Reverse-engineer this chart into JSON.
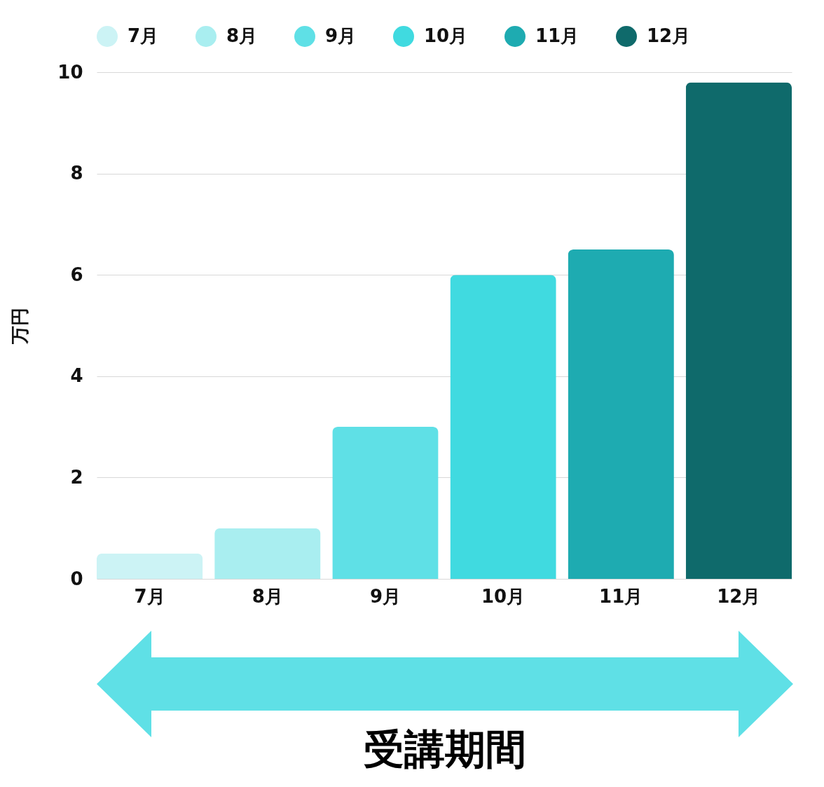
{
  "chart_data": {
    "type": "bar",
    "categories": [
      "7月",
      "8月",
      "9月",
      "10月",
      "11月",
      "12月"
    ],
    "series": [
      {
        "name": "7月",
        "color": "#ccf3f5",
        "values": [
          0.5,
          null,
          null,
          null,
          null,
          null
        ]
      },
      {
        "name": "8月",
        "color": "#a9eef0",
        "values": [
          null,
          1,
          null,
          null,
          null,
          null
        ]
      },
      {
        "name": "9月",
        "color": "#5fe0e6",
        "values": [
          null,
          null,
          3,
          null,
          null,
          null
        ]
      },
      {
        "name": "10月",
        "color": "#40dae0",
        "values": [
          null,
          null,
          null,
          6,
          null,
          null
        ]
      },
      {
        "name": "11月",
        "color": "#1eabb1",
        "values": [
          null,
          null,
          null,
          null,
          6.5,
          null
        ]
      },
      {
        "name": "12月",
        "color": "#0f6a6b",
        "values": [
          null,
          null,
          null,
          null,
          null,
          9.8
        ]
      }
    ],
    "stacked": true,
    "xlabel": "受講期間",
    "ylabel": "万円",
    "ylim": [
      0,
      10
    ],
    "yticks": [
      0,
      2,
      4,
      6,
      8,
      10
    ],
    "grid": "y",
    "legend": "top"
  }
}
